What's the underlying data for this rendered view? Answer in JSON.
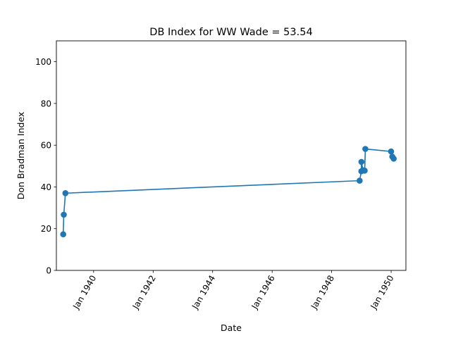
{
  "chart_data": {
    "type": "line",
    "title": "DB Index for WW Wade = 53.54",
    "xlabel": "Date",
    "ylabel": "Don Bradman Index",
    "xlim": [
      "1938-10-01",
      "1950-07-01"
    ],
    "ylim": [
      0,
      110
    ],
    "x_ticks": [
      {
        "date": "1940-01-01",
        "label": "Jan 1940"
      },
      {
        "date": "1942-01-01",
        "label": "Jan 1942"
      },
      {
        "date": "1944-01-01",
        "label": "Jan 1944"
      },
      {
        "date": "1946-01-01",
        "label": "Jan 1946"
      },
      {
        "date": "1948-01-01",
        "label": "Jan 1948"
      },
      {
        "date": "1950-01-01",
        "label": "Jan 1950"
      }
    ],
    "y_ticks": [
      0,
      20,
      40,
      60,
      80,
      100
    ],
    "grid": false,
    "color": "#1f77b4",
    "series": [
      {
        "x": [
          "1938-12-24",
          "1938-12-31",
          "1939-01-20",
          "1948-12-10",
          "1948-12-31",
          "1949-01-01",
          "1949-01-20",
          "1949-02-10",
          "1949-02-18",
          "1949-12-31",
          "1950-01-15",
          "1950-02-01"
        ],
        "y": [
          17.3,
          26.7,
          37.0,
          43.0,
          47.5,
          52.0,
          48.0,
          47.8,
          58.2,
          57.0,
          54.5,
          53.54
        ]
      }
    ]
  }
}
